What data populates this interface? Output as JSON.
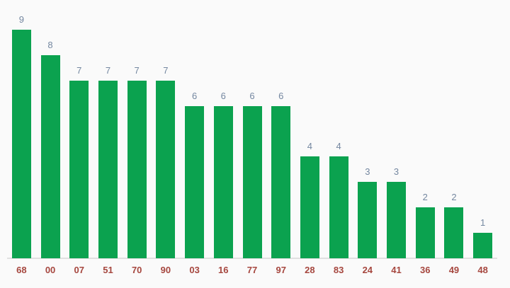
{
  "chart_data": {
    "type": "bar",
    "categories": [
      "68",
      "00",
      "07",
      "51",
      "70",
      "90",
      "03",
      "16",
      "77",
      "97",
      "28",
      "83",
      "24",
      "41",
      "36",
      "49",
      "48"
    ],
    "values": [
      9,
      8,
      7,
      7,
      7,
      7,
      6,
      6,
      6,
      6,
      4,
      4,
      3,
      3,
      2,
      2,
      1
    ],
    "title": "",
    "xlabel": "",
    "ylabel": "",
    "ylim": [
      0,
      10
    ],
    "grid": false,
    "legend": "none",
    "annotations": "value shown above each bar",
    "colors": {
      "background": "#fafafa",
      "bar": "#0ba24f",
      "value_label": "#7487a0",
      "category_label": "#a6473f",
      "axis_line": "#e0e0e0"
    }
  }
}
